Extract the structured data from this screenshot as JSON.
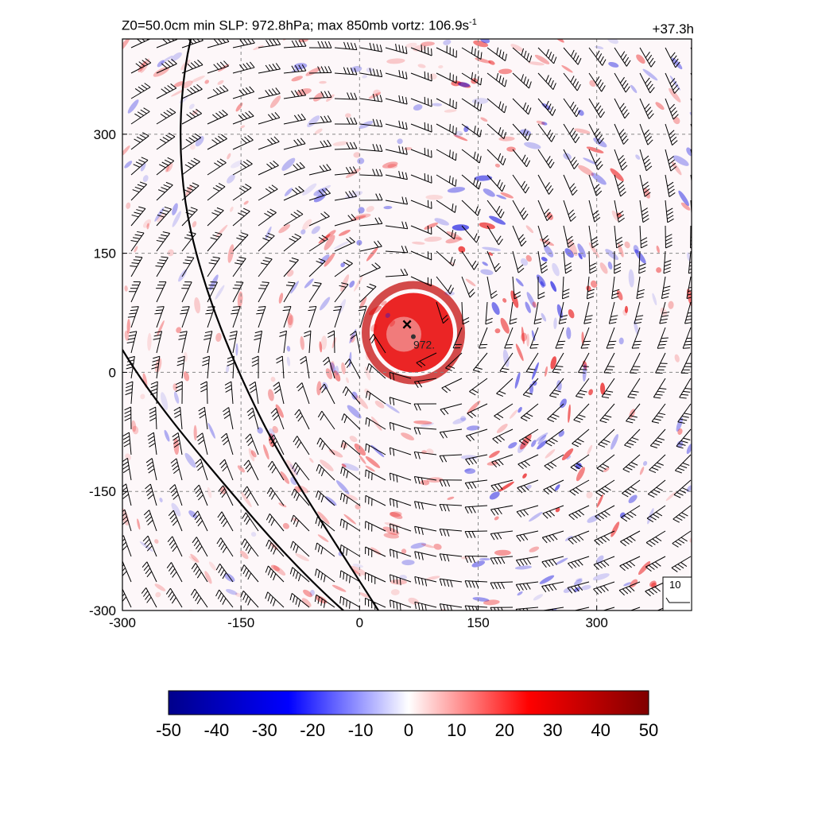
{
  "header": {
    "title_main": "Z0=50.0cm  min SLP: 972.8hPa; max 850mb vortz: 106.9s",
    "title_exp": "-1",
    "lead_time": "+37.3h"
  },
  "chart_data": {
    "type": "heatmap",
    "field": "850mb relative vorticity with wind barbs",
    "x_ticks": [
      "-300",
      "-150",
      "0",
      "150",
      "300"
    ],
    "y_ticks": [
      "-300",
      "-150",
      "0",
      "150",
      "300"
    ],
    "xlim": [
      -300,
      420
    ],
    "ylim": [
      -300,
      420
    ],
    "grid": true,
    "storm_center": {
      "x": 60,
      "y": 60,
      "marker": "×"
    },
    "slp_min_location": {
      "x": 68,
      "y": 45,
      "label": "972."
    },
    "colorbar": {
      "ticks": [
        "-50",
        "-40",
        "-30",
        "-20",
        "-10",
        "0",
        "10",
        "20",
        "30",
        "40",
        "50"
      ],
      "range": [
        -50,
        50
      ],
      "colors": [
        "#00008b",
        "#0000ff",
        "#ffffff",
        "#ff0000",
        "#800000"
      ]
    },
    "reference_vector": {
      "label": "10"
    },
    "colors": {
      "positive": "#e80000",
      "negative": "#1414e0",
      "barb": "#000000",
      "grid": "#888888"
    }
  }
}
